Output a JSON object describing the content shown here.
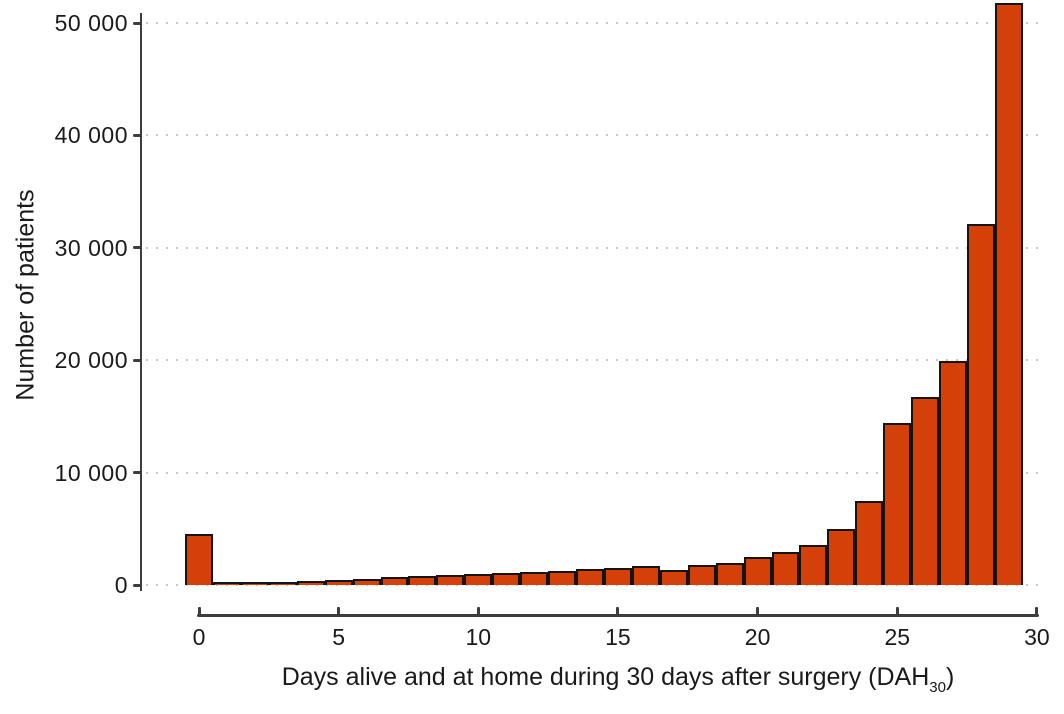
{
  "chart_data": {
    "type": "bar",
    "title": "",
    "ylabel": "Number of patients",
    "xlabel_parts": {
      "main": "Days alive and at home during 30 days after surgery (DAH",
      "subscript": "30",
      "close": ")"
    },
    "x": [
      0,
      1,
      2,
      3,
      4,
      5,
      6,
      7,
      8,
      9,
      10,
      11,
      12,
      13,
      14,
      15,
      16,
      17,
      18,
      19,
      20,
      21,
      22,
      23,
      24,
      25,
      26,
      27,
      28,
      29
    ],
    "values": [
      4500,
      250,
      250,
      280,
      390,
      410,
      560,
      680,
      770,
      860,
      1000,
      1100,
      1150,
      1250,
      1400,
      1550,
      1700,
      1350,
      1800,
      2000,
      2450,
      2900,
      3600,
      5000,
      7500,
      14400,
      16700,
      19900,
      32100,
      51800
    ],
    "bin_width": 1,
    "ylim": [
      0,
      52000
    ],
    "xlim": [
      -0.5,
      30
    ],
    "y_ticks": [
      {
        "value": 0,
        "label": "0"
      },
      {
        "value": 10000,
        "label": "10 000"
      },
      {
        "value": 20000,
        "label": "20 000"
      },
      {
        "value": 30000,
        "label": "30 000"
      },
      {
        "value": 40000,
        "label": "40 000"
      },
      {
        "value": 50000,
        "label": "50 000"
      }
    ],
    "x_ticks": [
      {
        "value": 0,
        "label": "0"
      },
      {
        "value": 5,
        "label": "5"
      },
      {
        "value": 10,
        "label": "10"
      },
      {
        "value": 15,
        "label": "15"
      },
      {
        "value": 20,
        "label": "20"
      },
      {
        "value": 25,
        "label": "25"
      },
      {
        "value": 30,
        "label": "30"
      }
    ],
    "grid": "horizontal-dotted",
    "legend": "none",
    "colors": {
      "bar_fill": "#d54008",
      "bar_stroke": "#141414",
      "axis": "#3d3d3d",
      "grid": "#c6c6c6",
      "text": "#1a1a1a",
      "background": "#ffffff"
    }
  }
}
